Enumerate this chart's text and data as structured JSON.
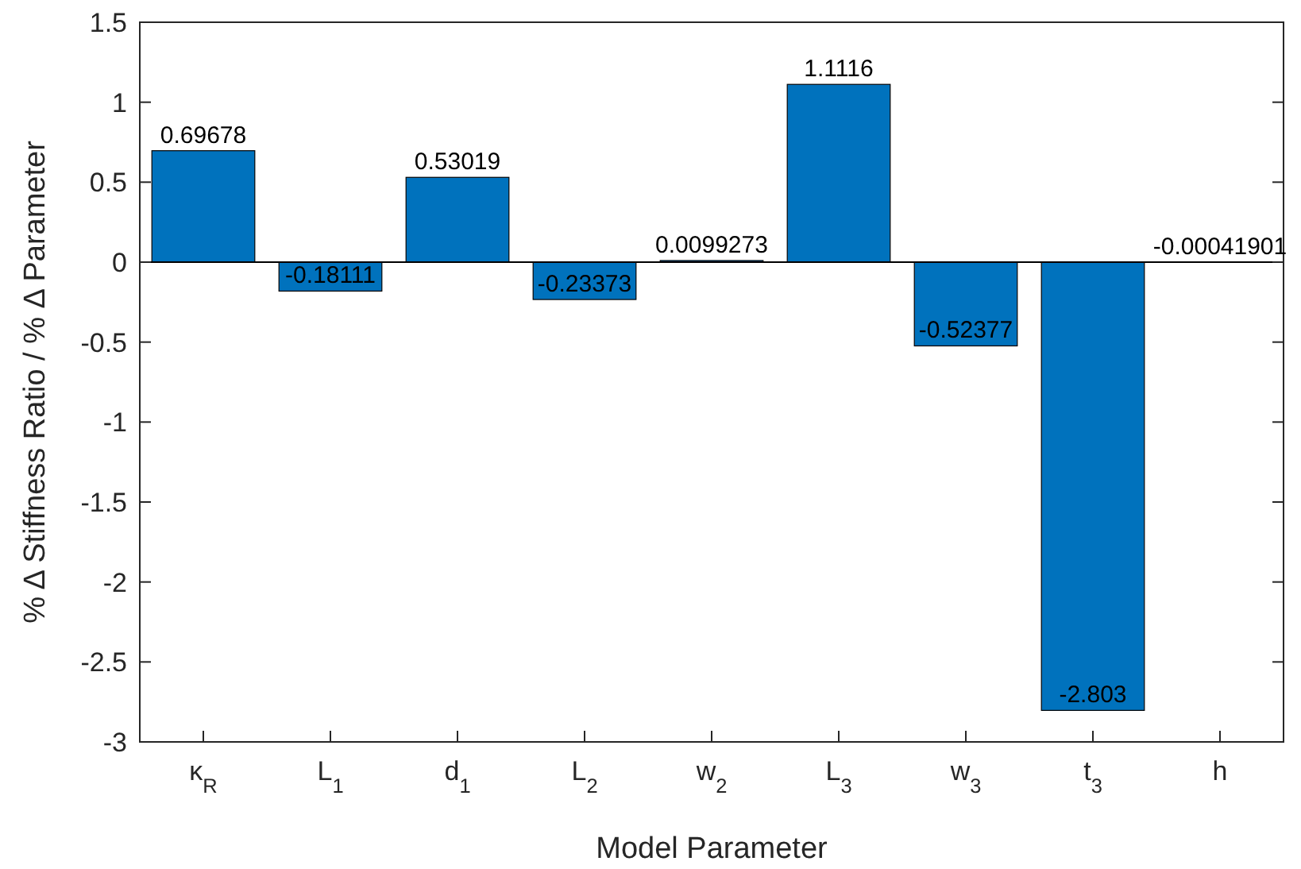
{
  "chart_data": {
    "type": "bar",
    "xlabel": "Model Parameter",
    "ylabel": "% Δ Stiffness Ratio / % Δ Parameter",
    "categories": [
      "κ$_{R}$",
      "L$_{1}$",
      "d$_{1}$",
      "L$_{2}$",
      "w$_{2}$",
      "L$_{3}$",
      "w$_{3}$",
      "t$_{3}$",
      "h"
    ],
    "values": [
      0.69678,
      -0.18111,
      0.53019,
      -0.23373,
      0.0099273,
      1.1116,
      -0.52377,
      -2.803,
      -0.00041901
    ],
    "color": "#0072bd",
    "ylim": [
      -3,
      1.5
    ],
    "yticks": [
      -3,
      -2.5,
      -2,
      -1.5,
      -1,
      -0.5,
      0,
      0.5,
      1,
      1.5
    ],
    "data_labels": true
  }
}
